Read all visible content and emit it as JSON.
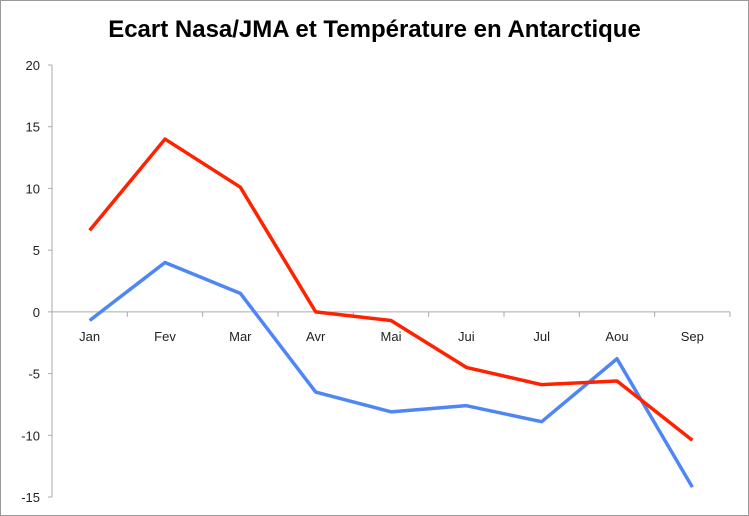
{
  "chart_data": {
    "type": "line",
    "title": "Ecart Nasa/JMA et Température en Antarctique",
    "xlabel": "",
    "ylabel": "",
    "categories": [
      "Jan",
      "Fev",
      "Mar",
      "Avr",
      "Mai",
      "Jui",
      "Jul",
      "Aou",
      "Sep"
    ],
    "ylim": [
      -15,
      20
    ],
    "yticks": [
      "20",
      "15",
      "10",
      "5",
      "0",
      "-5",
      "-10",
      "-15"
    ],
    "ytick_values": [
      20,
      15,
      10,
      5,
      0,
      -5,
      -10,
      -15
    ],
    "grid": false,
    "legend": "none",
    "series": [
      {
        "name": "red",
        "color": "#ff2200",
        "values": [
          6.6,
          14.0,
          10.1,
          0.0,
          -0.7,
          -4.5,
          -5.9,
          -5.6,
          -10.4
        ]
      },
      {
        "name": "blue",
        "color": "#4f86f7",
        "values": [
          -0.7,
          4.0,
          1.5,
          -6.5,
          -8.1,
          -7.6,
          -8.9,
          -3.8,
          -14.2
        ]
      }
    ]
  }
}
